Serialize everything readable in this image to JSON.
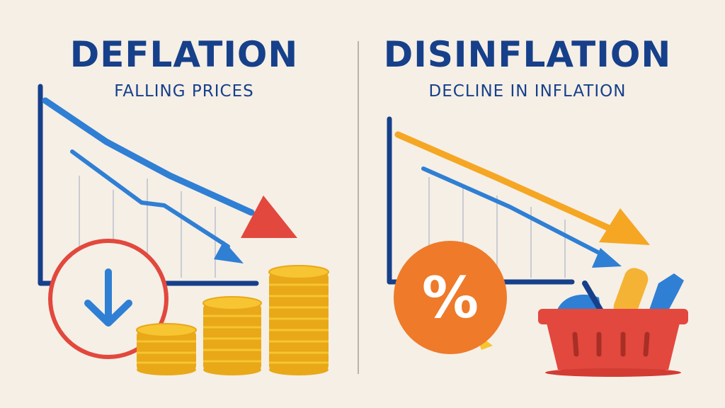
{
  "colors": {
    "background": "#f6efe6",
    "navy": "#16408a",
    "blue": "#2f7fd4",
    "red": "#e2483d",
    "orange": "#f5a623",
    "coin": "#f7c531",
    "coin_dark": "#e8a818",
    "divider": "#b9b3aa",
    "grid": "#c9ccd2"
  },
  "left_panel": {
    "title": "DEFLATION",
    "subtitle": "FALLING PRICES",
    "icons": [
      "down-arrow-circle-icon",
      "coin-stack-icon"
    ]
  },
  "right_panel": {
    "title": "DISINFLATION",
    "subtitle": "DECLINE IN INFLATION",
    "percent_symbol": "%",
    "icons": [
      "percent-badge-icon",
      "shopping-basket-icon"
    ]
  }
}
